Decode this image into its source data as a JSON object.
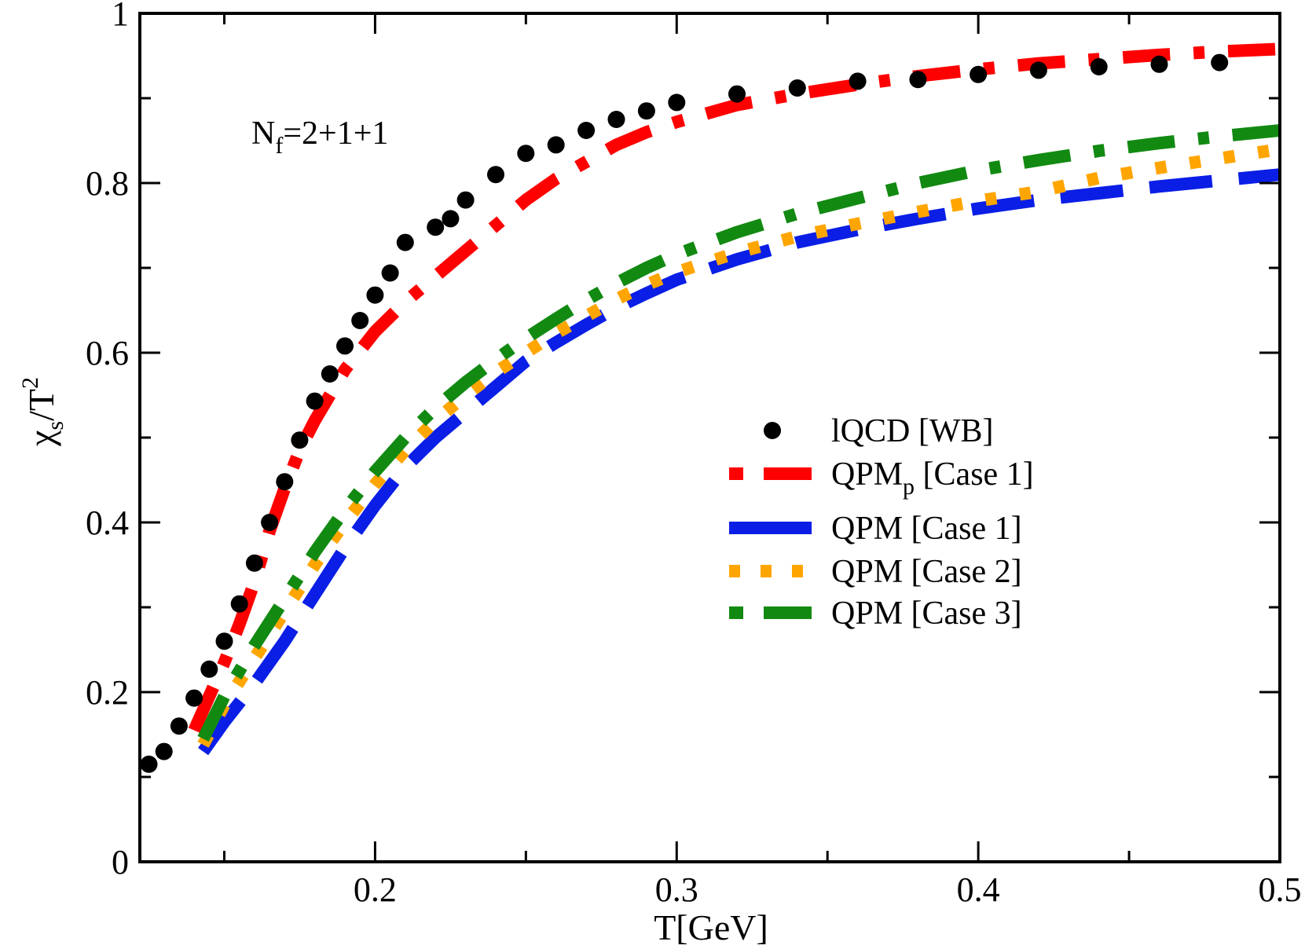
{
  "chart_data": {
    "type": "line",
    "title": "",
    "xlabel": "T[GeV]",
    "ylabel": {
      "main": "χ",
      "sub": "s",
      "rest": "/T",
      "sup": "2"
    },
    "xlim": [
      0.122,
      0.5
    ],
    "ylim": [
      0,
      1
    ],
    "xticks": [
      {
        "v": 0.2,
        "label": "0.2"
      },
      {
        "v": 0.3,
        "label": "0.3"
      },
      {
        "v": 0.4,
        "label": "0.4"
      },
      {
        "v": 0.5,
        "label": "0.5"
      }
    ],
    "yticks": [
      {
        "v": 0,
        "label": "0"
      },
      {
        "v": 0.2,
        "label": "0.2"
      },
      {
        "v": 0.4,
        "label": "0.4"
      },
      {
        "v": 0.6,
        "label": "0.6"
      },
      {
        "v": 0.8,
        "label": "0.8"
      },
      {
        "v": 1,
        "label": "1"
      }
    ],
    "annotation": {
      "main": "N",
      "sub": "f",
      "rest": "=2+1+1"
    },
    "series": [
      {
        "name": "lQCD [WB]",
        "label_main": "lQCD [WB]",
        "kind": "scatter",
        "color": "#000000",
        "x": [
          0.125,
          0.13,
          0.135,
          0.14,
          0.145,
          0.15,
          0.155,
          0.16,
          0.165,
          0.17,
          0.175,
          0.18,
          0.185,
          0.19,
          0.195,
          0.2,
          0.205,
          0.21,
          0.22,
          0.225,
          0.23,
          0.24,
          0.25,
          0.26,
          0.27,
          0.28,
          0.29,
          0.3,
          0.32,
          0.34,
          0.36,
          0.38,
          0.4,
          0.42,
          0.44,
          0.46,
          0.48
        ],
        "y": [
          0.115,
          0.13,
          0.16,
          0.193,
          0.227,
          0.26,
          0.304,
          0.352,
          0.4,
          0.448,
          0.497,
          0.543,
          0.575,
          0.608,
          0.638,
          0.668,
          0.694,
          0.73,
          0.748,
          0.758,
          0.78,
          0.81,
          0.835,
          0.845,
          0.862,
          0.875,
          0.885,
          0.895,
          0.905,
          0.912,
          0.92,
          0.922,
          0.928,
          0.933,
          0.937,
          0.94,
          0.942
        ]
      },
      {
        "name": "QPM_p [Case 1]",
        "label_main": "QPM",
        "label_sub": "p",
        "label_rest": " [Case 1]",
        "kind": "line",
        "color": "#ff0000",
        "dash": "dash-dot",
        "x": [
          0.14,
          0.145,
          0.15,
          0.155,
          0.16,
          0.165,
          0.17,
          0.175,
          0.18,
          0.19,
          0.2,
          0.21,
          0.22,
          0.23,
          0.24,
          0.25,
          0.26,
          0.27,
          0.28,
          0.29,
          0.3,
          0.32,
          0.34,
          0.36,
          0.38,
          0.4,
          0.42,
          0.44,
          0.46,
          0.48,
          0.5
        ],
        "y": [
          0.155,
          0.195,
          0.235,
          0.28,
          0.33,
          0.39,
          0.44,
          0.485,
          0.52,
          0.58,
          0.625,
          0.66,
          0.69,
          0.72,
          0.75,
          0.78,
          0.805,
          0.825,
          0.845,
          0.86,
          0.872,
          0.892,
          0.905,
          0.916,
          0.926,
          0.934,
          0.941,
          0.946,
          0.951,
          0.955,
          0.958
        ]
      },
      {
        "name": "QPM [Case 1]",
        "label_main": "QPM [Case 1]",
        "kind": "line",
        "color": "#0a1ee6",
        "dash": "long-dash",
        "x": [
          0.143,
          0.15,
          0.16,
          0.17,
          0.18,
          0.19,
          0.2,
          0.21,
          0.22,
          0.23,
          0.24,
          0.25,
          0.26,
          0.27,
          0.28,
          0.29,
          0.3,
          0.32,
          0.34,
          0.36,
          0.38,
          0.4,
          0.42,
          0.44,
          0.46,
          0.48,
          0.5
        ],
        "y": [
          0.13,
          0.165,
          0.21,
          0.26,
          0.315,
          0.37,
          0.42,
          0.465,
          0.5,
          0.53,
          0.56,
          0.59,
          0.612,
          0.633,
          0.653,
          0.67,
          0.686,
          0.71,
          0.73,
          0.745,
          0.758,
          0.77,
          0.78,
          0.788,
          0.796,
          0.803,
          0.81
        ]
      },
      {
        "name": "QPM [Case 2]",
        "label_main": "QPM [Case 2]",
        "kind": "line",
        "color": "#ffa500",
        "dash": "dot",
        "x": [
          0.143,
          0.15,
          0.16,
          0.17,
          0.18,
          0.19,
          0.2,
          0.21,
          0.22,
          0.23,
          0.24,
          0.25,
          0.26,
          0.27,
          0.28,
          0.29,
          0.3,
          0.32,
          0.34,
          0.36,
          0.38,
          0.4,
          0.42,
          0.44,
          0.46,
          0.48,
          0.5
        ],
        "y": [
          0.138,
          0.185,
          0.24,
          0.295,
          0.35,
          0.4,
          0.445,
          0.485,
          0.52,
          0.55,
          0.577,
          0.6,
          0.623,
          0.643,
          0.663,
          0.68,
          0.695,
          0.718,
          0.737,
          0.752,
          0.766,
          0.779,
          0.79,
          0.806,
          0.818,
          0.829,
          0.84
        ]
      },
      {
        "name": "QPM [Case 3]",
        "label_main": "QPM [Case 3]",
        "kind": "line",
        "color": "#128a12",
        "dash": "dash-dot",
        "x": [
          0.143,
          0.15,
          0.16,
          0.17,
          0.18,
          0.19,
          0.2,
          0.21,
          0.22,
          0.23,
          0.24,
          0.25,
          0.26,
          0.27,
          0.28,
          0.29,
          0.3,
          0.32,
          0.34,
          0.36,
          0.38,
          0.4,
          0.42,
          0.44,
          0.46,
          0.48,
          0.5
        ],
        "y": [
          0.145,
          0.195,
          0.255,
          0.31,
          0.365,
          0.415,
          0.46,
          0.5,
          0.535,
          0.565,
          0.592,
          0.617,
          0.64,
          0.662,
          0.682,
          0.7,
          0.716,
          0.742,
          0.764,
          0.782,
          0.8,
          0.815,
          0.827,
          0.838,
          0.847,
          0.855,
          0.862
        ]
      }
    ]
  }
}
